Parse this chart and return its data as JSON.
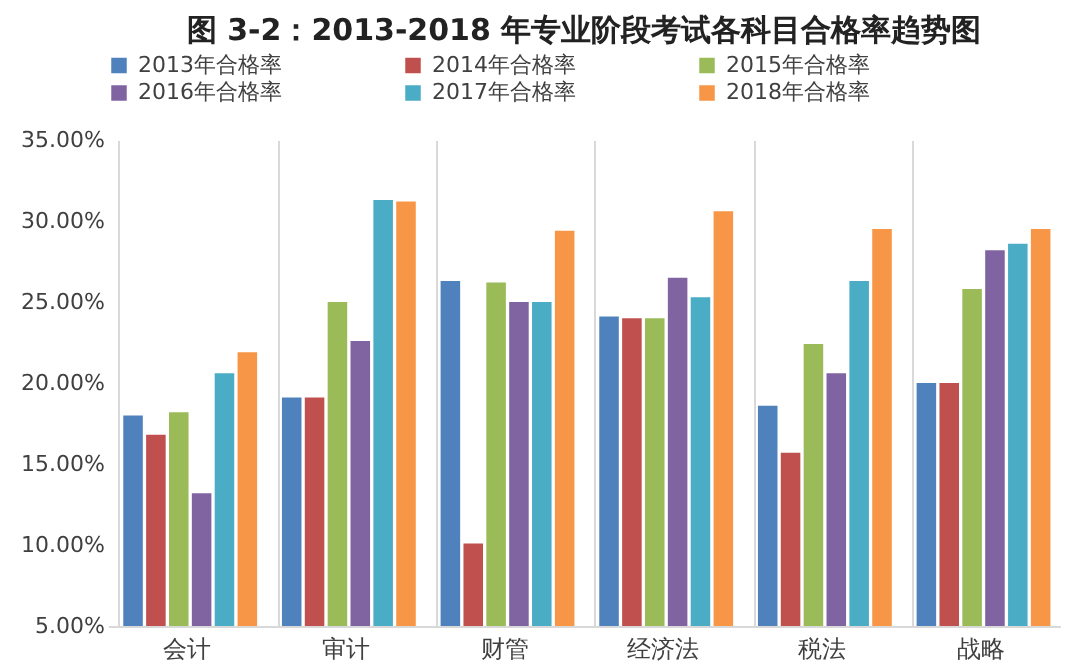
{
  "chart_data": {
    "type": "bar",
    "title": "图 3-2：2013-2018 年专业阶段考试各科目合格率趋势图",
    "categories": [
      "会计",
      "审计",
      "财管",
      "经济法",
      "税法",
      "战略"
    ],
    "series": [
      {
        "name": "2013年合格率",
        "color": "#4f81bd",
        "values": [
          18.0,
          19.1,
          26.3,
          24.1,
          18.6,
          20.0
        ]
      },
      {
        "name": "2014年合格率",
        "color": "#c0504d",
        "values": [
          16.8,
          19.1,
          10.1,
          24.0,
          15.7,
          20.0
        ]
      },
      {
        "name": "2015年合格率",
        "color": "#9bbb59",
        "values": [
          18.2,
          25.0,
          26.2,
          24.0,
          22.4,
          25.8
        ]
      },
      {
        "name": "2016年合格率",
        "color": "#8064a2",
        "values": [
          13.2,
          22.6,
          25.0,
          26.5,
          20.6,
          28.2
        ]
      },
      {
        "name": "2017年合格率",
        "color": "#4bacc6",
        "values": [
          20.6,
          31.3,
          25.0,
          25.3,
          26.3,
          28.6
        ]
      },
      {
        "name": "2018年合格率",
        "color": "#f79646",
        "values": [
          21.9,
          31.2,
          29.4,
          30.6,
          29.5,
          29.5
        ]
      }
    ],
    "ylim": [
      5,
      35
    ],
    "yticks": [
      {
        "value": 5,
        "label": "5.00%"
      },
      {
        "value": 10,
        "label": "10.00%"
      },
      {
        "value": 15,
        "label": "15.00%"
      },
      {
        "value": 20,
        "label": "20.00%"
      },
      {
        "value": 25,
        "label": "25.00%"
      },
      {
        "value": 30,
        "label": "30.00%"
      },
      {
        "value": 35,
        "label": "35.00%"
      }
    ],
    "grid": "x",
    "legend": "top"
  }
}
